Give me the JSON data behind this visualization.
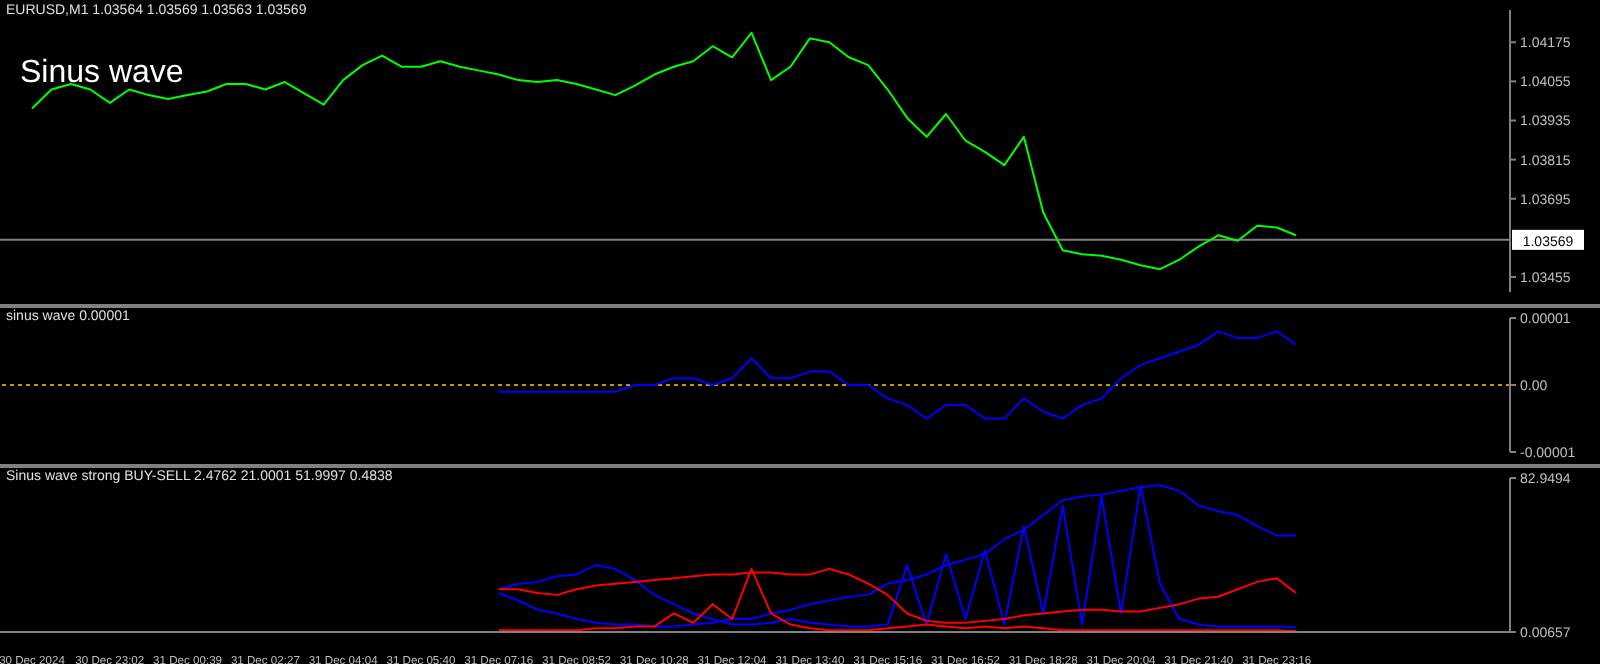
{
  "chart_data": [
    {
      "type": "line",
      "title": "EURUSD,M1 1.03564 1.03569 1.03563 1.03569",
      "annotations": [
        "Sinus wave"
      ],
      "categories": [
        null,
        null,
        null,
        null,
        null,
        null,
        null,
        null,
        null,
        null,
        null,
        null,
        null,
        null,
        null,
        null,
        null,
        null,
        null,
        null,
        null,
        null,
        null,
        null,
        null,
        null,
        null,
        null,
        null,
        null,
        null,
        null,
        null,
        null,
        null,
        null,
        null,
        null,
        null,
        null,
        null,
        null,
        null,
        null,
        null,
        null,
        null,
        null,
        null,
        null,
        null,
        null,
        null,
        null,
        null,
        null,
        null,
        null,
        null,
        null,
        null,
        null,
        null,
        null,
        null,
        null,
        null,
        null,
        null,
        null,
        null,
        null,
        null,
        null,
        null,
        null,
        null
      ],
      "series": [
        {
          "color": "#00ff00",
          "values": [
            1.03972,
            1.0403,
            1.04047,
            1.0403,
            1.03989,
            1.0403,
            1.04013,
            1.04001,
            1.04013,
            1.04024,
            1.04047,
            1.04047,
            1.0403,
            1.04053,
            1.04018,
            1.03984,
            1.04059,
            1.04105,
            1.04134,
            1.041,
            1.041,
            1.04117,
            1.041,
            1.04088,
            1.04076,
            1.04059,
            1.04053,
            1.04059,
            1.04047,
            1.0403,
            1.04013,
            1.04042,
            1.04076,
            1.041,
            1.04117,
            1.04163,
            1.04129,
            1.04204,
            1.04059,
            1.041,
            1.04187,
            1.04175,
            1.04129,
            1.04105,
            1.0403,
            1.03943,
            1.03885,
            1.03955,
            1.03873,
            1.03839,
            1.03798,
            1.03885,
            1.03653,
            1.03537,
            1.03525,
            1.0352,
            1.03508,
            1.03491,
            1.03479,
            1.03508,
            1.03549,
            1.03583,
            1.03566,
            1.03612,
            1.03607,
            1.03583,
            null,
            null,
            null,
            null,
            null,
            null,
            null,
            null,
            null,
            null,
            null
          ]
        }
      ],
      "ylim": [
        1.03409,
        1.04274
      ],
      "yticks": [
        1.03455,
        1.03695,
        1.03815,
        1.03935,
        1.04055,
        1.04175
      ],
      "tick_labels": "y",
      "ref_lines": [
        {
          "axis": "y",
          "value": 1.03569,
          "label": "1.03569",
          "color": "#808080"
        }
      ]
    },
    {
      "type": "line",
      "title": "sinus wave 0.00001",
      "categories": [
        null,
        null,
        null,
        null,
        null,
        null,
        null,
        null,
        null,
        null,
        null,
        null,
        null,
        null,
        null,
        null,
        null,
        null,
        null,
        null,
        null,
        null,
        null,
        null,
        null,
        null,
        null,
        null,
        null,
        null,
        null,
        null,
        null,
        null,
        null,
        null,
        null,
        null,
        null,
        null,
        null,
        null,
        null,
        null,
        null,
        null,
        null,
        null,
        null,
        null,
        null,
        null,
        null,
        null,
        null,
        null,
        null,
        null,
        null,
        null,
        null,
        null,
        null,
        null,
        null,
        null,
        null,
        null,
        null,
        null,
        null,
        null,
        null,
        null,
        null,
        null,
        null
      ],
      "series": [
        {
          "color": "#0000ff",
          "values": [
            null,
            null,
            null,
            null,
            null,
            null,
            null,
            null,
            null,
            null,
            null,
            null,
            null,
            null,
            null,
            null,
            null,
            null,
            null,
            null,
            null,
            null,
            null,
            null,
            -1e-06,
            -1e-06,
            -1e-06,
            -1e-06,
            -1e-06,
            -1e-06,
            -1e-06,
            0,
            0,
            1e-06,
            1e-06,
            0,
            1e-06,
            4e-06,
            1e-06,
            1e-06,
            2e-06,
            2e-06,
            0,
            0,
            -2e-06,
            -3e-06,
            -5e-06,
            -3e-06,
            -3e-06,
            -5e-06,
            -5e-06,
            -2e-06,
            -4e-06,
            -5e-06,
            -3e-06,
            -2e-06,
            1e-06,
            3e-06,
            4e-06,
            5e-06,
            6e-06,
            8e-06,
            7e-06,
            7e-06,
            8e-06,
            6e-06,
            null,
            null,
            null,
            null,
            null,
            null,
            null,
            null,
            null,
            null,
            null
          ]
        }
      ],
      "ylim": [
        -1e-05,
        1e-05
      ],
      "yticks": [
        {
          "value": -1e-05,
          "label": "-0.00001"
        },
        {
          "value": 0,
          "label": "0.00"
        },
        {
          "value": 1e-05,
          "label": "0.00001"
        }
      ],
      "tick_labels": "y",
      "ref_lines": [
        {
          "axis": "y",
          "value": 0,
          "color": "#c89600",
          "line_style": "dotted"
        }
      ]
    },
    {
      "type": "line",
      "title": "Sinus wave strong BUY-SELL 2.4762 21.0001 51.9997 0.4838",
      "categories": [
        "30 Dec 2024",
        null,
        null,
        null,
        "30 Dec 23:02",
        null,
        null,
        null,
        "31 Dec 00:39",
        null,
        null,
        null,
        "31 Dec 02:27",
        null,
        null,
        null,
        "31 Dec 04:04",
        null,
        null,
        null,
        "31 Dec 05:40",
        null,
        null,
        null,
        "31 Dec 07:16",
        null,
        null,
        null,
        "31 Dec 08:52",
        null,
        null,
        null,
        "31 Dec 10:28",
        null,
        null,
        null,
        "31 Dec 12:04",
        null,
        null,
        null,
        "31 Dec 13:40",
        null,
        null,
        null,
        "31 Dec 15:16",
        null,
        null,
        null,
        "31 Dec 16:52",
        null,
        null,
        null,
        "31 Dec 18:28",
        null,
        null,
        null,
        "31 Dec 20:04",
        null,
        null,
        null,
        "31 Dec 21:40",
        null,
        null,
        null,
        "31 Dec 23:16",
        null,
        null,
        null,
        null,
        null,
        null,
        null,
        null,
        null,
        null,
        null,
        null
      ],
      "series": [
        {
          "color": "#0000ff",
          "values": [
            null,
            null,
            null,
            null,
            null,
            null,
            null,
            null,
            null,
            null,
            null,
            null,
            null,
            null,
            null,
            null,
            null,
            null,
            null,
            null,
            null,
            null,
            null,
            null,
            23,
            26,
            27,
            30,
            31,
            36,
            34,
            28,
            20,
            15,
            10,
            7,
            4,
            4,
            5,
            7,
            5,
            4,
            3,
            3,
            4,
            36,
            4,
            42,
            7,
            44,
            4,
            57,
            10,
            68,
            4,
            73,
            10,
            79,
            26,
            7,
            4,
            3,
            3,
            3,
            3,
            2.4762,
            null,
            null,
            null,
            null,
            null,
            null,
            null,
            null,
            null,
            null,
            null
          ]
        },
        {
          "color": "#0000ff",
          "values": [
            null,
            null,
            null,
            null,
            null,
            null,
            null,
            null,
            null,
            null,
            null,
            null,
            null,
            null,
            null,
            null,
            null,
            null,
            null,
            null,
            null,
            null,
            null,
            null,
            21,
            17,
            12,
            10,
            7,
            5,
            4,
            4,
            3,
            3,
            4,
            5,
            7,
            7,
            10,
            12,
            15,
            17,
            19,
            20,
            26,
            28,
            31,
            36,
            39,
            42,
            50,
            55,
            63,
            71,
            73,
            74,
            76,
            78,
            79,
            76,
            68,
            65,
            63,
            57,
            52,
            51.9997,
            null,
            null,
            null,
            null,
            null,
            null,
            null,
            null,
            null,
            null,
            null
          ]
        },
        {
          "color": "#ff0000",
          "values": [
            null,
            null,
            null,
            null,
            null,
            null,
            null,
            null,
            null,
            null,
            null,
            null,
            null,
            null,
            null,
            null,
            null,
            null,
            null,
            null,
            null,
            null,
            null,
            null,
            23,
            23,
            21,
            20,
            23,
            25,
            26,
            27,
            28,
            29,
            30,
            31,
            31,
            32,
            32,
            31,
            31,
            34,
            31,
            26,
            20,
            10,
            6,
            5,
            5,
            6,
            7,
            9,
            10,
            11,
            12,
            12,
            11,
            11,
            13,
            15,
            18,
            19,
            23,
            27,
            29,
            21.0001,
            null,
            null,
            null,
            null,
            null,
            null,
            null,
            null,
            null,
            null,
            null
          ]
        },
        {
          "color": "#ff0000",
          "values": [
            null,
            null,
            null,
            null,
            null,
            null,
            null,
            null,
            null,
            null,
            null,
            null,
            null,
            null,
            null,
            null,
            null,
            null,
            null,
            null,
            null,
            null,
            null,
            null,
            1,
            1,
            1,
            1,
            1,
            2,
            2,
            3,
            3,
            10,
            5,
            15,
            7,
            34,
            10,
            4,
            2,
            1,
            1,
            1,
            2,
            3,
            4,
            3,
            2,
            3,
            2,
            3,
            2,
            1,
            1,
            1,
            1,
            1,
            1,
            1,
            1,
            1,
            1,
            1,
            1,
            0.4838,
            null,
            null,
            null,
            null,
            null,
            null,
            null,
            null,
            null,
            null,
            null
          ]
        }
      ],
      "ylim": [
        0.00657,
        82.9494
      ],
      "yticks": [
        0.00657,
        82.9494
      ]
    }
  ]
}
